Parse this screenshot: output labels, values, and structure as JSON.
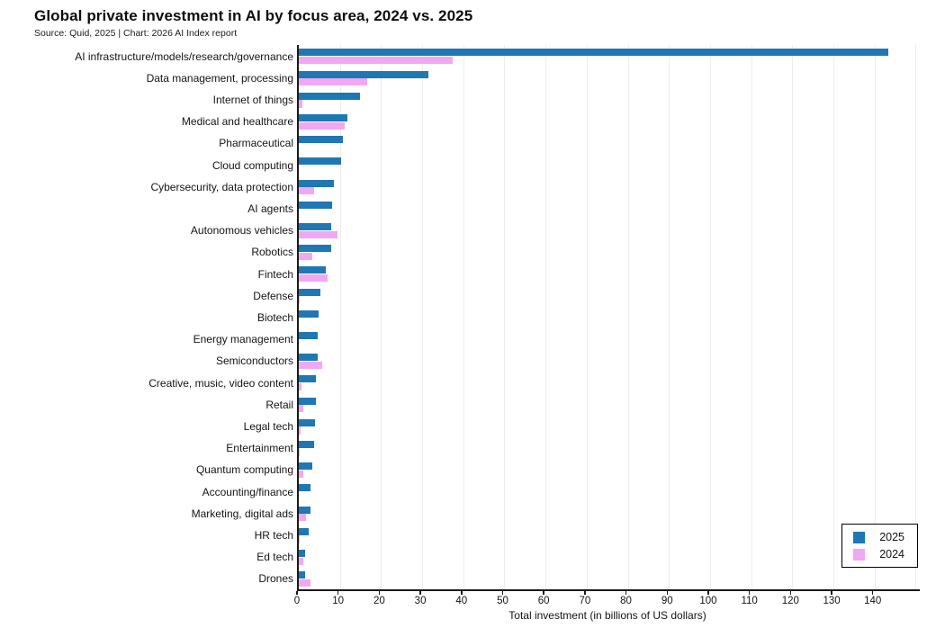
{
  "header": {
    "title": "Global private investment in AI by focus area, 2024 vs. 2025",
    "subtitle": "Source: Quid, 2025 | Chart: 2026 AI Index report"
  },
  "chart_data": {
    "type": "bar",
    "orientation": "horizontal",
    "title": "Global private investment in AI by focus area, 2024 vs. 2025",
    "xlabel": "Total investment (in billions of US dollars)",
    "ylabel": "",
    "xlim": [
      0,
      151
    ],
    "xticks": [
      0,
      10,
      20,
      30,
      40,
      50,
      60,
      70,
      80,
      90,
      100,
      110,
      120,
      130,
      140
    ],
    "grid": true,
    "legend_position": "lower right",
    "categories": [
      "AI infrastructure/models/research/governance",
      "Data management, processing",
      "Internet of things",
      "Medical and healthcare",
      "Pharmaceutical",
      "Cloud computing",
      "Cybersecurity, data protection",
      "AI agents",
      "Autonomous vehicles",
      "Robotics",
      "Fintech",
      "Defense",
      "Biotech",
      "Energy management",
      "Semiconductors",
      "Creative, music, video content",
      "Retail",
      "Legal tech",
      "Entertainment",
      "Quantum computing",
      "Accounting/finance",
      "Marketing, digital ads",
      "HR tech",
      "Ed tech",
      "Drones"
    ],
    "series": [
      {
        "name": "2025",
        "color": "#1f77b4",
        "values": [
          143.4,
          31.5,
          14.8,
          11.8,
          10.7,
          10.3,
          8.5,
          8.0,
          7.8,
          7.8,
          6.5,
          5.3,
          4.9,
          4.7,
          4.5,
          4.2,
          4.2,
          3.9,
          3.8,
          3.2,
          2.8,
          2.8,
          2.3,
          1.6,
          1.6
        ]
      },
      {
        "name": "2024",
        "color": "#f0a8f2",
        "values": [
          37.4,
          16.7,
          0.9,
          11.1,
          0,
          0,
          3.8,
          0,
          9.4,
          3.2,
          7.1,
          0.2,
          0,
          0,
          5.6,
          0.7,
          1.2,
          0.5,
          0.2,
          1.1,
          0,
          1.8,
          0.3,
          1.2,
          2.8
        ]
      }
    ]
  },
  "legend": {
    "items": [
      {
        "label": "2025",
        "color": "#1f77b4"
      },
      {
        "label": "2024",
        "color": "#f0a8f2"
      }
    ]
  }
}
